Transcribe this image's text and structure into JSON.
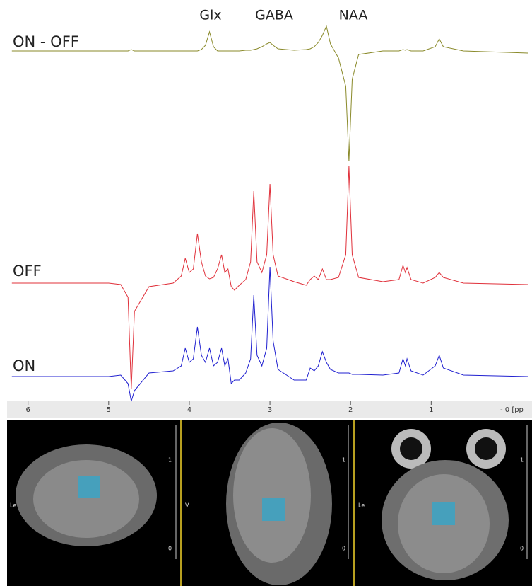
{
  "chart_data": {
    "type": "line",
    "x": [
      6.2,
      5.0,
      4.85,
      4.76,
      4.72,
      4.68,
      4.5,
      4.2,
      4.1,
      4.05,
      4.0,
      3.95,
      3.9,
      3.85,
      3.8,
      3.75,
      3.7,
      3.65,
      3.6,
      3.56,
      3.52,
      3.48,
      3.44,
      3.38,
      3.3,
      3.24,
      3.2,
      3.16,
      3.1,
      3.04,
      3.0,
      2.96,
      2.9,
      2.7,
      2.55,
      2.5,
      2.45,
      2.4,
      2.35,
      2.3,
      2.25,
      2.15,
      2.06,
      2.02,
      1.98,
      1.9,
      1.6,
      1.4,
      1.35,
      1.32,
      1.3,
      1.25,
      1.1,
      0.95,
      0.9,
      0.85,
      0.6,
      -0.2
    ],
    "series": [
      {
        "name": "ON - OFF",
        "color": "#8a8a2a",
        "values": [
          0,
          0,
          0,
          0,
          2,
          0,
          0,
          0,
          0,
          0,
          0,
          0,
          0,
          2,
          8,
          27,
          6,
          0,
          0,
          0,
          0,
          0,
          0,
          0,
          1,
          1,
          2,
          3,
          6,
          10,
          12,
          8,
          3,
          1,
          2,
          3,
          6,
          12,
          22,
          35,
          10,
          -10,
          -50,
          -156,
          -40,
          -5,
          0,
          0,
          2,
          1,
          2,
          0,
          0,
          6,
          17,
          6,
          0,
          -3
        ]
      },
      {
        "name": "OFF",
        "color": "#e0303a",
        "values": [
          0,
          0,
          -2,
          -20,
          -150,
          -40,
          -5,
          0,
          10,
          35,
          15,
          20,
          70,
          30,
          10,
          6,
          8,
          20,
          40,
          15,
          20,
          -5,
          -10,
          -3,
          5,
          30,
          130,
          30,
          15,
          40,
          140,
          40,
          10,
          2,
          -3,
          5,
          10,
          5,
          20,
          5,
          5,
          8,
          40,
          165,
          40,
          8,
          2,
          5,
          25,
          15,
          22,
          5,
          0,
          8,
          15,
          8,
          0,
          -2
        ]
      },
      {
        "name": "ON",
        "color": "#2020d0",
        "values": [
          0,
          0,
          2,
          -10,
          -35,
          -20,
          5,
          8,
          15,
          40,
          20,
          25,
          70,
          30,
          20,
          40,
          15,
          20,
          40,
          15,
          25,
          -10,
          -5,
          -5,
          5,
          25,
          115,
          30,
          15,
          40,
          155,
          50,
          10,
          -5,
          -5,
          12,
          8,
          15,
          35,
          20,
          10,
          5,
          5,
          5,
          3,
          3,
          2,
          5,
          25,
          15,
          25,
          8,
          2,
          15,
          30,
          12,
          2,
          0
        ]
      }
    ],
    "annotations": [
      "Glx",
      "GABA",
      "NAA"
    ],
    "xlim": [
      6.26,
      -0.25
    ],
    "xticks": [
      6,
      5,
      4,
      3,
      2,
      1,
      {
        "value": 0,
        "label": "- 0 [pp"
      }
    ]
  },
  "images": [
    {
      "side_label": "Le",
      "scale_labels": [
        "1",
        "0"
      ]
    },
    {
      "side_label": "V",
      "scale_labels": [
        "1",
        "0"
      ]
    },
    {
      "side_label": "Le",
      "scale_labels": [
        "1",
        "0"
      ]
    }
  ]
}
